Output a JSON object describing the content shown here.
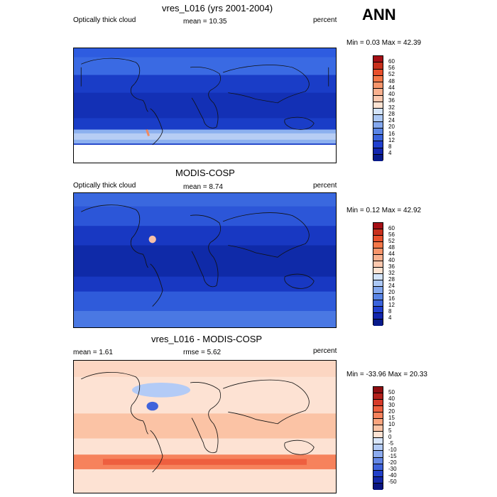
{
  "season": "ANN",
  "panels": [
    {
      "title": "vres_L016 (yrs 2001-2004)",
      "left_label": "Optically thick cloud",
      "center_label": "mean =  10.35",
      "right_label": "percent",
      "minmax": "Min =  0.03 Max =  42.39",
      "colorbar_labels": [
        "60",
        "56",
        "52",
        "48",
        "44",
        "40",
        "36",
        "32",
        "28",
        "24",
        "20",
        "16",
        "12",
        "8",
        "4"
      ],
      "colorbar_colors": [
        "#a50f15",
        "#c8301c",
        "#e8502c",
        "#f47748",
        "#f7956b",
        "#f9b08e",
        "#fcc8ae",
        "#fde3d2",
        "#d4e4fa",
        "#acc8f5",
        "#84a8ee",
        "#5a85e6",
        "#3a63dc",
        "#2140cf",
        "#1326ae",
        "#081a8a"
      ]
    },
    {
      "title": "MODIS-COSP",
      "left_label": "Optically thick cloud",
      "center_label": "mean =  8.74",
      "right_label": "percent",
      "minmax": "Min =  0.12 Max =  42.92",
      "colorbar_labels": [
        "60",
        "56",
        "52",
        "48",
        "44",
        "40",
        "36",
        "32",
        "28",
        "24",
        "20",
        "16",
        "12",
        "8",
        "4"
      ],
      "colorbar_colors": [
        "#a50f15",
        "#c8301c",
        "#e8502c",
        "#f47748",
        "#f7956b",
        "#f9b08e",
        "#fcc8ae",
        "#fde3d2",
        "#d4e4fa",
        "#acc8f5",
        "#84a8ee",
        "#5a85e6",
        "#3a63dc",
        "#2140cf",
        "#1326ae",
        "#081a8a"
      ]
    },
    {
      "title": "vres_L016 - MODIS-COSP",
      "left_label": "mean =   1.61",
      "center_label": "rmse =   5.62",
      "right_label": "percent",
      "minmax": "Min = -33.96 Max =  20.33",
      "colorbar_labels": [
        "50",
        "40",
        "30",
        "20",
        "15",
        "10",
        "5",
        "0",
        "-5",
        "-10",
        "-15",
        "-20",
        "-30",
        "-40",
        "-50"
      ],
      "colorbar_colors": [
        "#8e0d10",
        "#b3201b",
        "#d63b2a",
        "#ee5f3f",
        "#f6825c",
        "#f9a47e",
        "#fbc3a5",
        "#fde2d3",
        "#d9e6fb",
        "#b3cbf6",
        "#8cabef",
        "#6588e6",
        "#3f63db",
        "#2240c9",
        "#1427a8",
        "#0a1580"
      ]
    }
  ]
}
